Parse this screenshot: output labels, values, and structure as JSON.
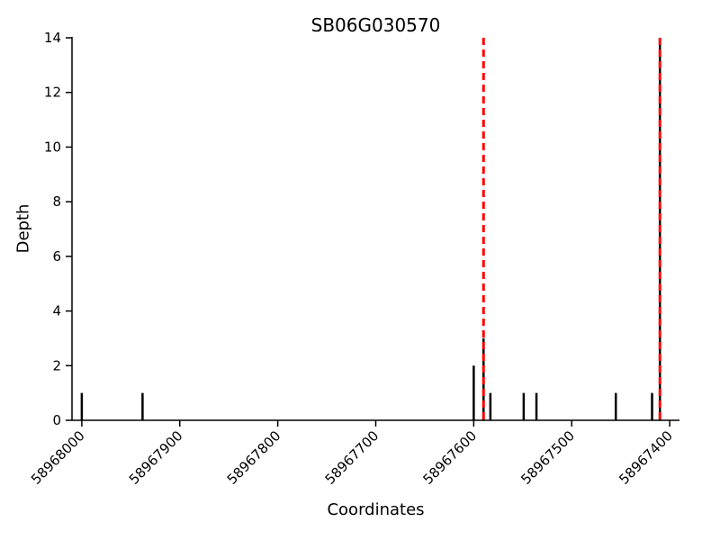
{
  "chart_data": {
    "type": "bar",
    "title": "SB06G030570",
    "xlabel": "Coordinates",
    "ylabel": "Depth",
    "x_axis_reversed": true,
    "xlim": [
      58968010,
      58967390
    ],
    "ylim": [
      0,
      14
    ],
    "xticks": [
      58968000,
      58967900,
      58967800,
      58967700,
      58967600,
      58967500,
      58967400
    ],
    "yticks": [
      0,
      2,
      4,
      6,
      8,
      10,
      12,
      14
    ],
    "grid": false,
    "legend_position": "none",
    "bar_color": "#000000",
    "bars": [
      {
        "x": 58968000,
        "depth": 1
      },
      {
        "x": 58967938,
        "depth": 1
      },
      {
        "x": 58967600,
        "depth": 2
      },
      {
        "x": 58967590,
        "depth": 3
      },
      {
        "x": 58967583,
        "depth": 1
      },
      {
        "x": 58967549,
        "depth": 1
      },
      {
        "x": 58967536,
        "depth": 1
      },
      {
        "x": 58967455,
        "depth": 1
      },
      {
        "x": 58967418,
        "depth": 1
      },
      {
        "x": 58967410,
        "depth": 14
      }
    ],
    "vlines": [
      {
        "x": 58967590,
        "color": "#ff0000",
        "style": "dashed"
      },
      {
        "x": 58967410,
        "color": "#ff0000",
        "style": "dashed"
      }
    ]
  }
}
